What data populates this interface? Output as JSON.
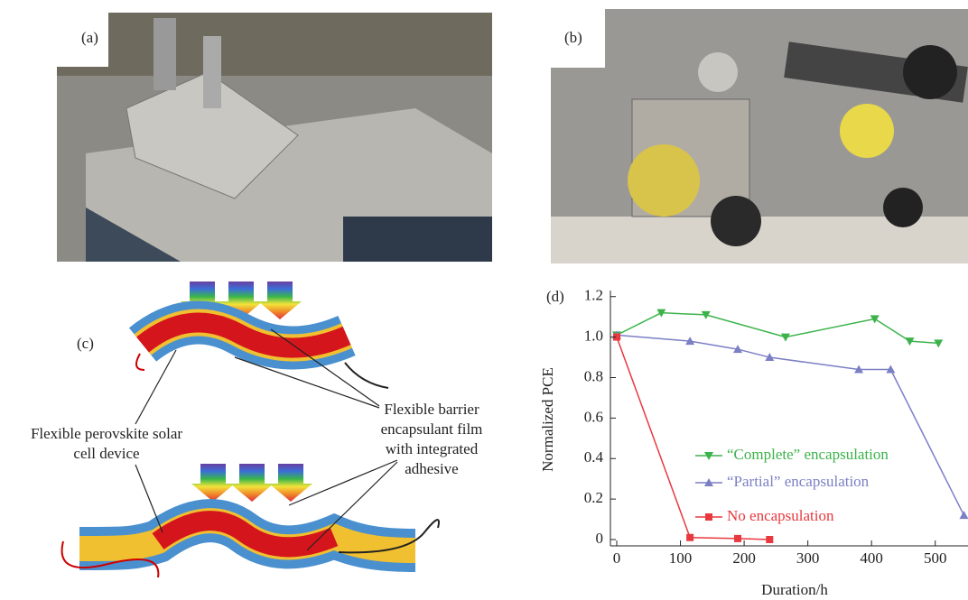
{
  "panels": {
    "a": {
      "label": "(a)"
    },
    "b": {
      "label": "(b)"
    },
    "c": {
      "label": "(c)",
      "device_label": [
        "Flexible perovskite solar",
        "cell device"
      ],
      "film_label": [
        "Flexible barrier",
        "encapsulant film",
        "with integrated",
        "adhesive"
      ]
    },
    "d": {
      "label": "(d)"
    }
  },
  "chart_data": {
    "type": "line",
    "xlabel": "Duration/h",
    "ylabel": "Normalized  PCE",
    "xlim": [
      0,
      550
    ],
    "ylim": [
      0,
      1.23
    ],
    "xticks": [
      0,
      100,
      200,
      300,
      400,
      500
    ],
    "yticks": [
      0,
      0.2,
      0.4,
      0.6,
      0.8,
      {
        "value": 1,
        "label": "1.0"
      },
      1.2
    ],
    "series": [
      {
        "name": "“Complete” encapsulation",
        "color": "#3cb34a",
        "marker": "triangle-down",
        "x": [
          0,
          70,
          140,
          265,
          405,
          460,
          505
        ],
        "values": [
          1.01,
          1.12,
          1.11,
          1.0,
          1.09,
          0.98,
          0.97
        ]
      },
      {
        "name": "“Partial” encapsulation",
        "color": "#7b7fc4",
        "marker": "triangle-up",
        "x": [
          0,
          115,
          190,
          240,
          380,
          430,
          545
        ],
        "values": [
          1.01,
          0.98,
          0.94,
          0.9,
          0.84,
          0.84,
          0.12
        ]
      },
      {
        "name": "No encapsulation",
        "color": "#e8393f",
        "marker": "square",
        "x": [
          0,
          115,
          190,
          240
        ],
        "values": [
          1.0,
          0.01,
          0.005,
          0.0
        ]
      }
    ]
  }
}
